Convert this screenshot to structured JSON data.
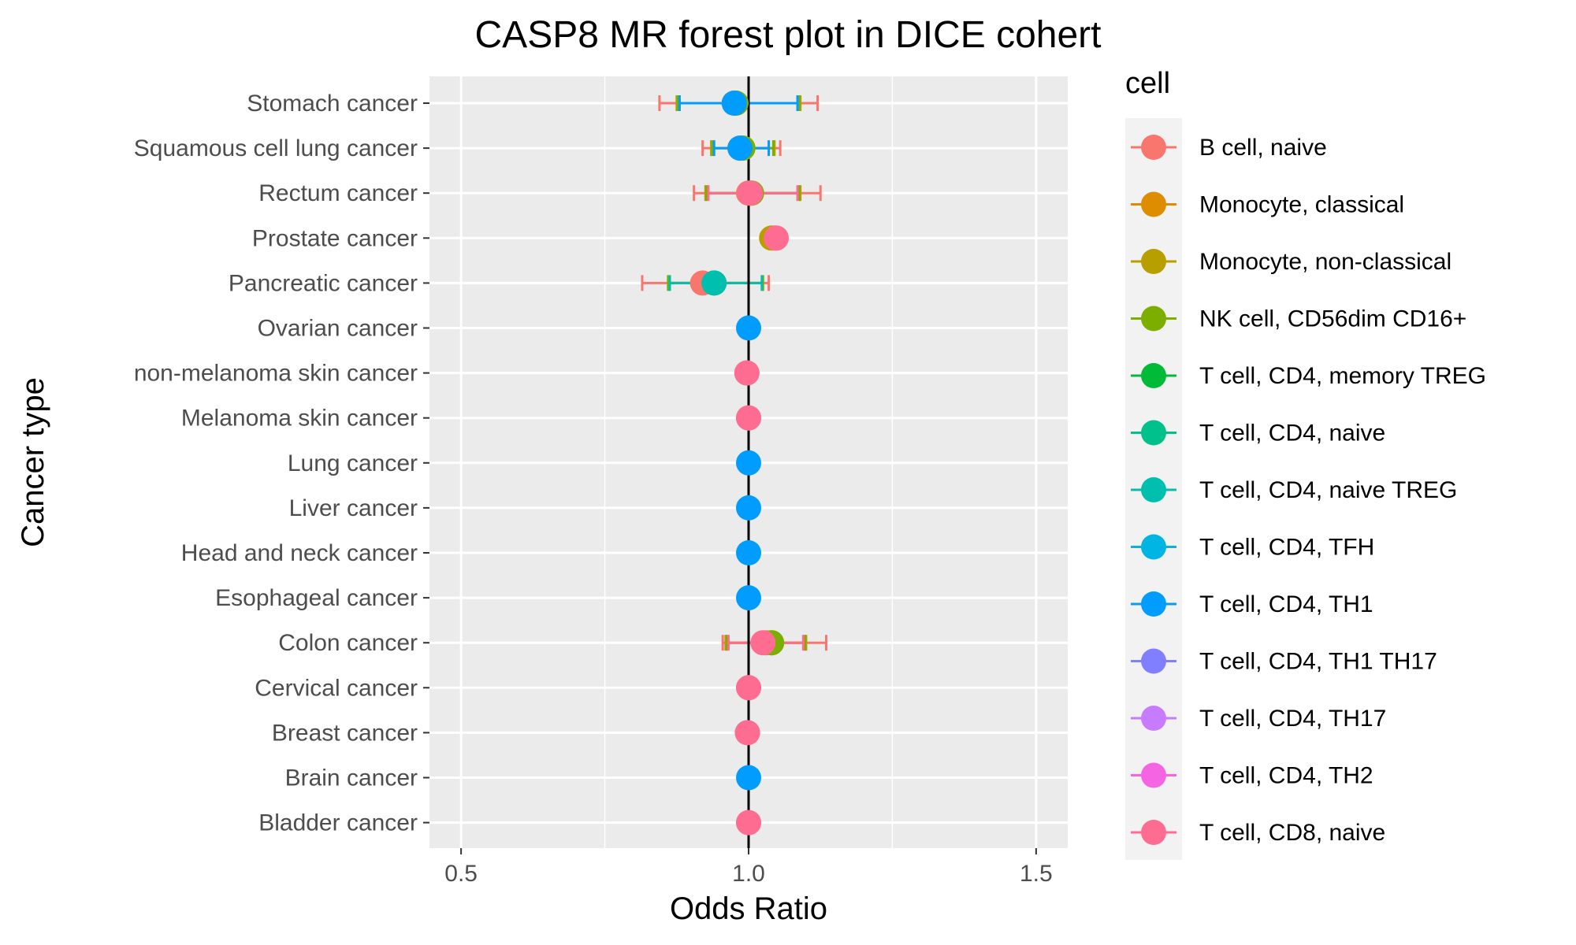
{
  "chart_data": {
    "type": "forest",
    "title": "CASP8 MR forest plot in DICE cohert",
    "xlabel": "Odds Ratio",
    "ylabel": "Cancer type",
    "xlim": [
      0.445,
      1.555
    ],
    "xticks": [
      0.5,
      1.0,
      1.5
    ],
    "xtick_labels": [
      "0.5",
      "1.0",
      "1.5"
    ],
    "reference_line": 1.0,
    "grid": true,
    "legend": {
      "title": "cell",
      "position": "right",
      "entries": [
        {
          "label": "B cell, naive",
          "color": "#F8766D"
        },
        {
          "label": "Monocyte, classical",
          "color": "#DE8C00"
        },
        {
          "label": "Monocyte, non-classical",
          "color": "#B79F00"
        },
        {
          "label": "NK cell, CD56dim CD16+",
          "color": "#7CAE00"
        },
        {
          "label": "T cell, CD4, memory TREG",
          "color": "#00BA38"
        },
        {
          "label": "T cell, CD4, naive",
          "color": "#00C08B"
        },
        {
          "label": "T cell, CD4, naive TREG",
          "color": "#00BFAE"
        },
        {
          "label": "T cell, CD4, TFH",
          "color": "#00B4E4"
        },
        {
          "label": "T cell, CD4, TH1",
          "color": "#009DFF"
        },
        {
          "label": "T cell, CD4, TH1 TH17",
          "color": "#7F7FFF"
        },
        {
          "label": "T cell, CD4, TH17",
          "color": "#C77CFF"
        },
        {
          "label": "T cell, CD4, TH2",
          "color": "#F564E3"
        },
        {
          "label": "T cell, CD8, naive",
          "color": "#FF6C91"
        }
      ]
    },
    "categories": [
      "Stomach cancer",
      "Squamous cell lung cancer",
      "Rectum cancer",
      "Prostate cancer",
      "Pancreatic cancer",
      "Ovarian cancer",
      "non-melanoma skin cancer",
      "Melanoma skin cancer",
      "Lung cancer",
      "Liver cancer",
      "Head and neck cancer",
      "Esophageal cancer",
      "Colon cancer",
      "Cervical cancer",
      "Breast cancer",
      "Brain cancer",
      "Bladder cancer"
    ],
    "points": [
      {
        "category": "Stomach cancer",
        "cell": "B cell, naive",
        "or": 0.975,
        "lo": 0.845,
        "hi": 1.12
      },
      {
        "category": "Stomach cancer",
        "cell": "Monocyte, non-classical",
        "or": 0.978,
        "lo": 0.875,
        "hi": 1.09
      },
      {
        "category": "Stomach cancer",
        "cell": "NK cell, CD56dim CD16+",
        "or": 0.978,
        "lo": 0.877,
        "hi": 1.088
      },
      {
        "category": "Stomach cancer",
        "cell": "T cell, CD4, TH1",
        "or": 0.975,
        "lo": 0.88,
        "hi": 1.085
      },
      {
        "category": "Squamous cell lung cancer",
        "cell": "B cell, naive",
        "or": 0.985,
        "lo": 0.92,
        "hi": 1.055
      },
      {
        "category": "Squamous cell lung cancer",
        "cell": "Monocyte, non-classical",
        "or": 0.99,
        "lo": 0.935,
        "hi": 1.045
      },
      {
        "category": "Squamous cell lung cancer",
        "cell": "NK cell, CD56dim CD16+",
        "or": 0.99,
        "lo": 0.937,
        "hi": 1.043
      },
      {
        "category": "Squamous cell lung cancer",
        "cell": "T cell, CD4, TH1",
        "or": 0.985,
        "lo": 0.94,
        "hi": 1.035
      },
      {
        "category": "Rectum cancer",
        "cell": "B cell, naive",
        "or": 1.0,
        "lo": 0.905,
        "hi": 1.125
      },
      {
        "category": "Rectum cancer",
        "cell": "Monocyte, non-classical",
        "or": 1.005,
        "lo": 0.925,
        "hi": 1.09
      },
      {
        "category": "Rectum cancer",
        "cell": "NK cell, CD56dim CD16+",
        "or": 1.005,
        "lo": 0.927,
        "hi": 1.088
      },
      {
        "category": "Rectum cancer",
        "cell": "T cell, CD8, naive",
        "or": 1.003,
        "lo": 0.93,
        "hi": 1.085
      },
      {
        "category": "Prostate cancer",
        "cell": "B cell, naive",
        "or": 1.045,
        "lo": 1.035,
        "hi": 1.055
      },
      {
        "category": "Prostate cancer",
        "cell": "Monocyte, non-classical",
        "or": 1.04,
        "lo": 1.032,
        "hi": 1.048
      },
      {
        "category": "Prostate cancer",
        "cell": "T cell, CD8, naive",
        "or": 1.048,
        "lo": 1.04,
        "hi": 1.056
      },
      {
        "category": "Pancreatic cancer",
        "cell": "B cell, naive",
        "or": 0.92,
        "lo": 0.815,
        "hi": 1.035
      },
      {
        "category": "Pancreatic cancer",
        "cell": "NK cell, CD56dim CD16+",
        "or": 0.94,
        "lo": 0.86,
        "hi": 1.025
      },
      {
        "category": "Pancreatic cancer",
        "cell": "T cell, CD4, naive TREG",
        "or": 0.94,
        "lo": 0.863,
        "hi": 1.023
      },
      {
        "category": "Ovarian cancer",
        "cell": "T cell, CD4, TH1",
        "or": 1.0,
        "lo": 1.0,
        "hi": 1.0
      },
      {
        "category": "non-melanoma skin cancer",
        "cell": "B cell, naive",
        "or": 0.997,
        "lo": 0.997,
        "hi": 0.997
      },
      {
        "category": "non-melanoma skin cancer",
        "cell": "T cell, CD8, naive",
        "or": 0.997,
        "lo": 0.997,
        "hi": 0.997
      },
      {
        "category": "Melanoma skin cancer",
        "cell": "B cell, naive",
        "or": 1.0,
        "lo": 1.0,
        "hi": 1.0
      },
      {
        "category": "Melanoma skin cancer",
        "cell": "T cell, CD8, naive",
        "or": 1.0,
        "lo": 1.0,
        "hi": 1.0
      },
      {
        "category": "Lung cancer",
        "cell": "T cell, CD4, TH1",
        "or": 1.0,
        "lo": 1.0,
        "hi": 1.0
      },
      {
        "category": "Liver cancer",
        "cell": "T cell, CD4, TH1",
        "or": 1.0,
        "lo": 1.0,
        "hi": 1.0
      },
      {
        "category": "Head and neck cancer",
        "cell": "T cell, CD4, TH1",
        "or": 1.0,
        "lo": 1.0,
        "hi": 1.0
      },
      {
        "category": "Esophageal cancer",
        "cell": "T cell, CD4, TH1",
        "or": 1.0,
        "lo": 1.0,
        "hi": 1.0
      },
      {
        "category": "Colon cancer",
        "cell": "B cell, naive",
        "or": 1.03,
        "lo": 0.955,
        "hi": 1.135
      },
      {
        "category": "Colon cancer",
        "cell": "Monocyte, non-classical",
        "or": 1.04,
        "lo": 0.96,
        "hi": 1.1
      },
      {
        "category": "Colon cancer",
        "cell": "NK cell, CD56dim CD16+",
        "or": 1.04,
        "lo": 0.962,
        "hi": 1.098
      },
      {
        "category": "Colon cancer",
        "cell": "T cell, CD8, naive",
        "or": 1.025,
        "lo": 0.965,
        "hi": 1.095
      },
      {
        "category": "Cervical cancer",
        "cell": "B cell, naive",
        "or": 1.0,
        "lo": 1.0,
        "hi": 1.0
      },
      {
        "category": "Cervical cancer",
        "cell": "T cell, CD8, naive",
        "or": 1.0,
        "lo": 1.0,
        "hi": 1.0
      },
      {
        "category": "Breast cancer",
        "cell": "B cell, naive",
        "or": 0.998,
        "lo": 0.998,
        "hi": 0.998
      },
      {
        "category": "Breast cancer",
        "cell": "T cell, CD8, naive",
        "or": 0.998,
        "lo": 0.998,
        "hi": 0.998
      },
      {
        "category": "Brain cancer",
        "cell": "T cell, CD4, TH1",
        "or": 1.0,
        "lo": 1.0,
        "hi": 1.0
      },
      {
        "category": "Bladder cancer",
        "cell": "B cell, naive",
        "or": 1.0,
        "lo": 1.0,
        "hi": 1.0
      },
      {
        "category": "Bladder cancer",
        "cell": "T cell, CD8, naive",
        "or": 1.0,
        "lo": 1.0,
        "hi": 1.0
      }
    ]
  }
}
